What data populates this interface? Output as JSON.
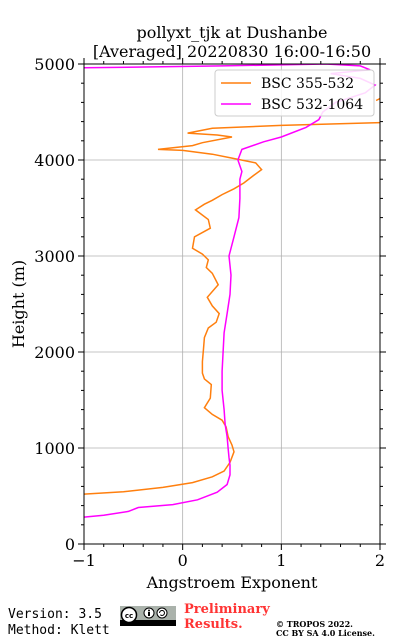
{
  "chart_data": {
    "type": "line",
    "title": [
      "pollyxt_tjk at Dushanbe",
      "[Averaged] 20220830 16:00-16:50"
    ],
    "xlabel": "Angstroem Exponent",
    "ylabel": "Height (m)",
    "xlim": [
      -1,
      2
    ],
    "ylim": [
      0,
      5000
    ],
    "xticks": [
      -1,
      0,
      1,
      2
    ],
    "yticks": [
      0,
      1000,
      2000,
      3000,
      4000,
      5000
    ],
    "xtick_labels": [
      "−1",
      "0",
      "1",
      "2"
    ],
    "ytick_labels": [
      "0",
      "1000",
      "2000",
      "3000",
      "4000",
      "5000"
    ],
    "grid": true,
    "legend_position": "top-right",
    "series": [
      {
        "name": "BSC 355-532",
        "color": "#ff7f0e",
        "points": [
          [
            -1.0,
            520
          ],
          [
            -0.6,
            545
          ],
          [
            -0.2,
            590
          ],
          [
            0.1,
            640
          ],
          [
            0.3,
            700
          ],
          [
            0.42,
            760
          ],
          [
            0.48,
            850
          ],
          [
            0.52,
            960
          ],
          [
            0.5,
            1030
          ],
          [
            0.46,
            1120
          ],
          [
            0.44,
            1220
          ],
          [
            0.4,
            1290
          ],
          [
            0.3,
            1350
          ],
          [
            0.22,
            1420
          ],
          [
            0.28,
            1520
          ],
          [
            0.29,
            1660
          ],
          [
            0.22,
            1720
          ],
          [
            0.2,
            1780
          ],
          [
            0.2,
            1900
          ],
          [
            0.21,
            2020
          ],
          [
            0.22,
            2150
          ],
          [
            0.26,
            2250
          ],
          [
            0.34,
            2310
          ],
          [
            0.37,
            2400
          ],
          [
            0.3,
            2480
          ],
          [
            0.25,
            2570
          ],
          [
            0.36,
            2700
          ],
          [
            0.3,
            2820
          ],
          [
            0.24,
            2880
          ],
          [
            0.26,
            2960
          ],
          [
            0.2,
            3020
          ],
          [
            0.1,
            3080
          ],
          [
            0.12,
            3200
          ],
          [
            0.28,
            3290
          ],
          [
            0.26,
            3380
          ],
          [
            0.13,
            3480
          ],
          [
            0.22,
            3540
          ],
          [
            0.3,
            3580
          ],
          [
            0.4,
            3640
          ],
          [
            0.52,
            3700
          ],
          [
            0.62,
            3760
          ],
          [
            0.72,
            3840
          ],
          [
            0.8,
            3900
          ],
          [
            0.74,
            3970
          ],
          [
            0.5,
            4020
          ],
          [
            0.3,
            4060
          ],
          [
            0.0,
            4100
          ],
          [
            -0.25,
            4110
          ],
          [
            0.1,
            4150
          ],
          [
            0.2,
            4180
          ],
          [
            0.5,
            4240
          ],
          [
            0.35,
            4260
          ],
          [
            0.05,
            4280
          ],
          [
            0.3,
            4330
          ],
          [
            1.0,
            4360
          ],
          [
            2.0,
            4390
          ]
        ],
        "extra_points": [
          [
            1.96,
            4620
          ],
          [
            2.0,
            4640
          ]
        ]
      },
      {
        "name": "BSC 532-1064",
        "color": "#ff00ff",
        "points": [
          [
            -1.0,
            280
          ],
          [
            -0.8,
            300
          ],
          [
            -0.55,
            340
          ],
          [
            -0.45,
            380
          ],
          [
            -0.1,
            410
          ],
          [
            0.15,
            460
          ],
          [
            0.35,
            540
          ],
          [
            0.45,
            620
          ],
          [
            0.48,
            720
          ],
          [
            0.48,
            820
          ],
          [
            0.47,
            900
          ],
          [
            0.46,
            1000
          ],
          [
            0.45,
            1120
          ],
          [
            0.43,
            1250
          ],
          [
            0.42,
            1400
          ],
          [
            0.4,
            1600
          ],
          [
            0.4,
            1800
          ],
          [
            0.41,
            2000
          ],
          [
            0.42,
            2200
          ],
          [
            0.45,
            2400
          ],
          [
            0.48,
            2600
          ],
          [
            0.49,
            2800
          ],
          [
            0.47,
            3000
          ],
          [
            0.52,
            3200
          ],
          [
            0.57,
            3400
          ],
          [
            0.58,
            3600
          ],
          [
            0.58,
            3800
          ],
          [
            0.6,
            3880
          ],
          [
            0.56,
            4000
          ],
          [
            0.6,
            4110
          ],
          [
            0.82,
            4190
          ],
          [
            1.0,
            4240
          ],
          [
            1.25,
            4340
          ],
          [
            1.38,
            4420
          ],
          [
            1.42,
            4500
          ],
          [
            1.55,
            4600
          ],
          [
            1.85,
            4700
          ],
          [
            1.95,
            4780
          ],
          [
            1.8,
            4850
          ],
          [
            1.5,
            4900
          ],
          [
            1.9,
            4940
          ],
          [
            1.8,
            4980
          ],
          [
            1.45,
            5000
          ],
          [
            0.4,
            4980
          ],
          [
            -1.0,
            4960
          ]
        ]
      }
    ]
  },
  "footer": {
    "version": "Version: 3.5",
    "method": "Method: Klett",
    "cc_badge": "cc-by-sa-icon",
    "prelim_line1": "Preliminary",
    "prelim_line2": "Results.",
    "copyright_line1": "© TROPOS 2022.",
    "copyright_line2": "CC BY SA 4.0 License."
  }
}
